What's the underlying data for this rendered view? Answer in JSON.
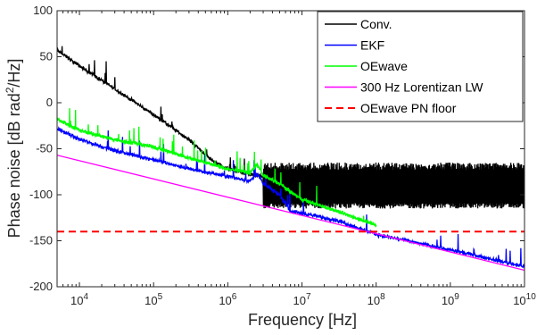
{
  "chart_data": {
    "type": "line",
    "title": "",
    "xlabel": "Frequency [Hz]",
    "ylabel": "Phase noise [dB rad",
    "ylabel_sup": "2",
    "ylabel_end": "/Hz]",
    "xscale": "log",
    "xlim": [
      5000,
      10000000000
    ],
    "ylim": [
      -200,
      100
    ],
    "yticks": [
      -200,
      -150,
      -100,
      -50,
      0,
      50,
      100
    ],
    "yticks_labels": [
      "-200",
      "-150",
      "-100",
      "-50",
      "0",
      "50",
      "100"
    ],
    "xticks": [
      10000,
      100000,
      1000000,
      10000000,
      100000000,
      1000000000,
      10000000000
    ],
    "xticks_base": "10",
    "xticks_exp": [
      "4",
      "5",
      "6",
      "7",
      "8",
      "9",
      "10"
    ],
    "grid": false,
    "legend_position": "top-right",
    "series": [
      {
        "name": "Conv.",
        "color": "#000000",
        "style": "solid",
        "x": [
          5000,
          10000,
          30000,
          100000,
          300000,
          600000,
          1000000,
          2000000,
          3000000,
          5000000,
          10000000,
          20000000,
          50000000,
          100000000,
          1000000000,
          10000000000
        ],
        "y": [
          57,
          40,
          15,
          -13,
          -40,
          -62,
          -72,
          -78,
          -80,
          -82,
          -85,
          -88,
          -90,
          -90,
          -91,
          -92
        ],
        "noise_band": [
          -115,
          -65
        ],
        "noise_from": 3000000
      },
      {
        "name": "EKF",
        "color": "#0000ff",
        "style": "solid",
        "x": [
          5000,
          10000,
          30000,
          100000,
          300000,
          1000000,
          2000000,
          2500000,
          3000000,
          5000000,
          7000000,
          10000000,
          30000000,
          100000000,
          1000000000,
          10000000000
        ],
        "y": [
          -28,
          -40,
          -52,
          -62,
          -72,
          -80,
          -85,
          -77,
          -88,
          -100,
          -118,
          -120,
          -128,
          -143,
          -160,
          -178
        ]
      },
      {
        "name": "OEwave",
        "color": "#00ff00",
        "style": "solid",
        "x": [
          5000,
          10000,
          30000,
          100000,
          300000,
          1000000,
          2000000,
          2500000,
          3000000,
          5000000,
          7000000,
          10000000,
          30000000,
          100000000
        ],
        "y": [
          -18,
          -30,
          -40,
          -48,
          -60,
          -72,
          -76,
          -67,
          -79,
          -88,
          -97,
          -105,
          -118,
          -133
        ]
      },
      {
        "name": "300 Hz Lorentizan LW",
        "color": "#ff00ff",
        "style": "solid",
        "x": [
          5000,
          10000000000
        ],
        "y": [
          -57,
          -182
        ]
      },
      {
        "name": "OEwave PN floor",
        "color": "#ff0000",
        "style": "dashed",
        "x": [
          5000,
          10000000000
        ],
        "y": [
          -140,
          -140
        ]
      }
    ]
  }
}
